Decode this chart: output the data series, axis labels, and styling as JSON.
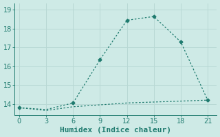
{
  "xlabel": "Humidex (Indice chaleur)",
  "background_color": "#ceeae6",
  "grid_color": "#b8d8d4",
  "line_color": "#1e7a6e",
  "x_line1": [
    0,
    3,
    6,
    9,
    12,
    15,
    18,
    21
  ],
  "y_line1": [
    13.8,
    13.7,
    14.05,
    16.35,
    18.45,
    18.65,
    17.3,
    14.2
  ],
  "x_line2": [
    0,
    3,
    6,
    9,
    12,
    15,
    18,
    21
  ],
  "y_line2": [
    13.8,
    13.65,
    13.85,
    13.95,
    14.05,
    14.1,
    14.15,
    14.2
  ],
  "xlim": [
    -0.5,
    22
  ],
  "ylim": [
    13.4,
    19.35
  ],
  "xticks": [
    0,
    3,
    6,
    9,
    12,
    15,
    18,
    21
  ],
  "yticks": [
    14,
    15,
    16,
    17,
    18,
    19
  ],
  "xlabel_fontsize": 8,
  "tick_fontsize": 7,
  "marker_x1": [
    0,
    3,
    6,
    9,
    12,
    15,
    18,
    21
  ],
  "marker_y1": [
    13.8,
    13.7,
    14.05,
    16.35,
    18.45,
    18.65,
    17.3,
    14.2
  ]
}
